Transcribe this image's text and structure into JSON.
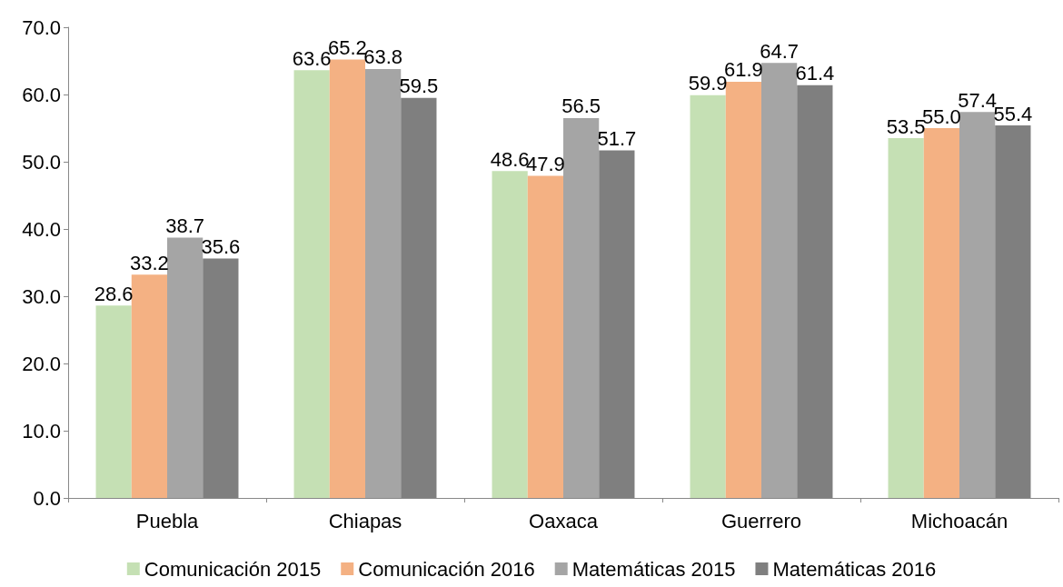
{
  "chart_data": {
    "type": "bar",
    "categories": [
      "Puebla",
      "Chiapas",
      "Oaxaca",
      "Guerrero",
      "Michoacán"
    ],
    "series": [
      {
        "name": "Comunicación 2015",
        "color": "#c5e0b4",
        "values": [
          28.6,
          63.6,
          48.6,
          59.9,
          53.5
        ],
        "value_labels": [
          "28.6",
          "63.6",
          "48.6",
          "59.9",
          "53.5"
        ]
      },
      {
        "name": "Comunicación 2016",
        "color": "#f4b183",
        "values": [
          33.2,
          65.2,
          47.9,
          61.9,
          55.0
        ],
        "value_labels": [
          "33.2",
          "65.2",
          "47.9",
          "61.9",
          "55.0"
        ]
      },
      {
        "name": "Matemáticas 2015",
        "color": "#a5a5a5",
        "values": [
          38.7,
          63.8,
          56.5,
          64.7,
          57.4
        ],
        "value_labels": [
          "38.7",
          "63.8",
          "56.5",
          "64.7",
          "57.4"
        ]
      },
      {
        "name": "Matemáticas 2016",
        "color": "#7f7f7f",
        "values": [
          35.6,
          59.5,
          51.7,
          61.4,
          55.4
        ],
        "value_labels": [
          "35.6",
          "59.5",
          "51.7",
          "61.4",
          "55.4"
        ]
      }
    ],
    "ylim": [
      0,
      70
    ],
    "yticks": [
      {
        "value": 0,
        "label": "0.0"
      },
      {
        "value": 10,
        "label": "10.0"
      },
      {
        "value": 20,
        "label": "20.0"
      },
      {
        "value": 30,
        "label": "30.0"
      },
      {
        "value": 40,
        "label": "40.0"
      },
      {
        "value": 50,
        "label": "50.0"
      },
      {
        "value": 60,
        "label": "60.0"
      },
      {
        "value": 70,
        "label": "70.0"
      }
    ],
    "grid": false,
    "legend": "bottom"
  }
}
